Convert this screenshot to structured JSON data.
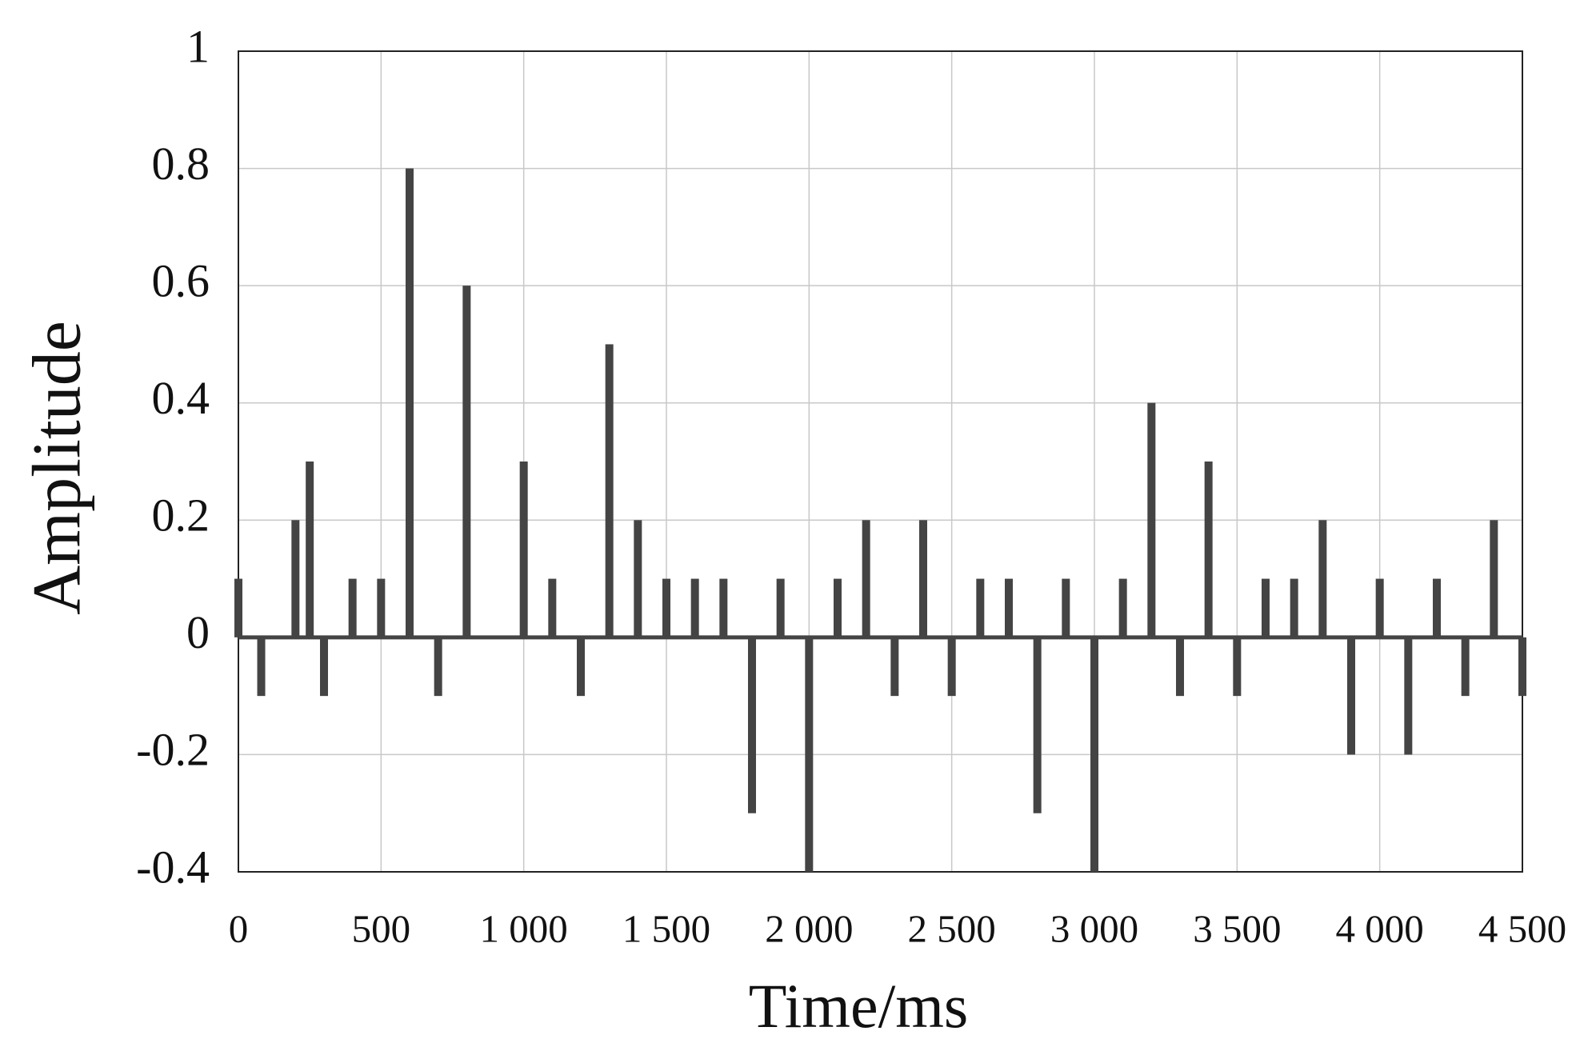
{
  "chart_data": {
    "type": "stem",
    "xlabel": "Time/ms",
    "ylabel": "Amplitude",
    "x": [
      0,
      80,
      200,
      250,
      300,
      400,
      500,
      600,
      700,
      800,
      1000,
      1100,
      1200,
      1300,
      1400,
      1500,
      1600,
      1700,
      1800,
      1900,
      2000,
      2100,
      2200,
      2300,
      2400,
      2500,
      2600,
      2700,
      2800,
      2900,
      3000,
      3100,
      3200,
      3300,
      3400,
      3500,
      3600,
      3700,
      3800,
      3900,
      4000,
      4100,
      4200,
      4300,
      4400,
      4500
    ],
    "values": [
      0.1,
      -0.1,
      0.2,
      0.3,
      -0.1,
      0.1,
      0.1,
      0.8,
      -0.1,
      0.6,
      0.3,
      0.1,
      -0.1,
      0.5,
      0.2,
      0.1,
      0.1,
      0.1,
      -0.3,
      0.1,
      -0.4,
      0.1,
      0.2,
      -0.1,
      0.2,
      -0.1,
      0.1,
      0.1,
      -0.3,
      0.1,
      -0.4,
      0.1,
      0.4,
      -0.1,
      0.3,
      -0.1,
      0.1,
      0.1,
      0.2,
      -0.2,
      0.1,
      -0.2,
      0.1,
      -0.1,
      0.2,
      -0.1
    ],
    "color": "#444444",
    "xlim": [
      0,
      4500
    ],
    "ylim": [
      -0.4,
      1
    ],
    "xticks": [
      0,
      500,
      {
        "value": 1000,
        "label": "1 000"
      },
      {
        "value": 1500,
        "label": "1 500"
      },
      {
        "value": 2000,
        "label": "2 000"
      },
      {
        "value": 2500,
        "label": "2 500"
      },
      {
        "value": 3000,
        "label": "3 000"
      },
      {
        "value": 3500,
        "label": "3 500"
      },
      {
        "value": 4000,
        "label": "4 000"
      },
      {
        "value": 4500,
        "label": "4 500"
      }
    ],
    "yticks": [
      -0.4,
      -0.2,
      0,
      0.2,
      0.4,
      0.6,
      0.8,
      1
    ],
    "grid": true
  }
}
